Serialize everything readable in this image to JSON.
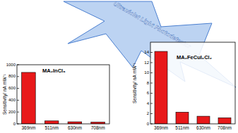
{
  "banner_text": "Ultraviolet Light Photodetector",
  "chart_data": [
    {
      "type": "bar",
      "title": "MA₂InCl₆",
      "y_label": "Sensitivity/ nA mW⁻¹",
      "categories": [
        "369nm",
        "511nm",
        "630nm",
        "708nm"
      ],
      "values": [
        870,
        50,
        35,
        30
      ],
      "color": "#e8191a",
      "ylim": [
        0,
        1000
      ],
      "yticks": [
        0,
        200,
        400,
        600,
        800,
        1000
      ],
      "grid": false
    },
    {
      "type": "bar",
      "title": "MA₂FeCuI₂Cl₂",
      "y_label": "Sensitivity/ nA mW⁻¹",
      "categories": [
        "369nm",
        "511nm",
        "630nm",
        "708nm"
      ],
      "values": [
        14.2,
        2.3,
        1.5,
        1.2
      ],
      "color": "#e8191a",
      "ylim": [
        0,
        16
      ],
      "yticks": [
        0,
        2,
        4,
        6,
        8,
        10,
        12,
        14
      ],
      "grid": false
    }
  ]
}
